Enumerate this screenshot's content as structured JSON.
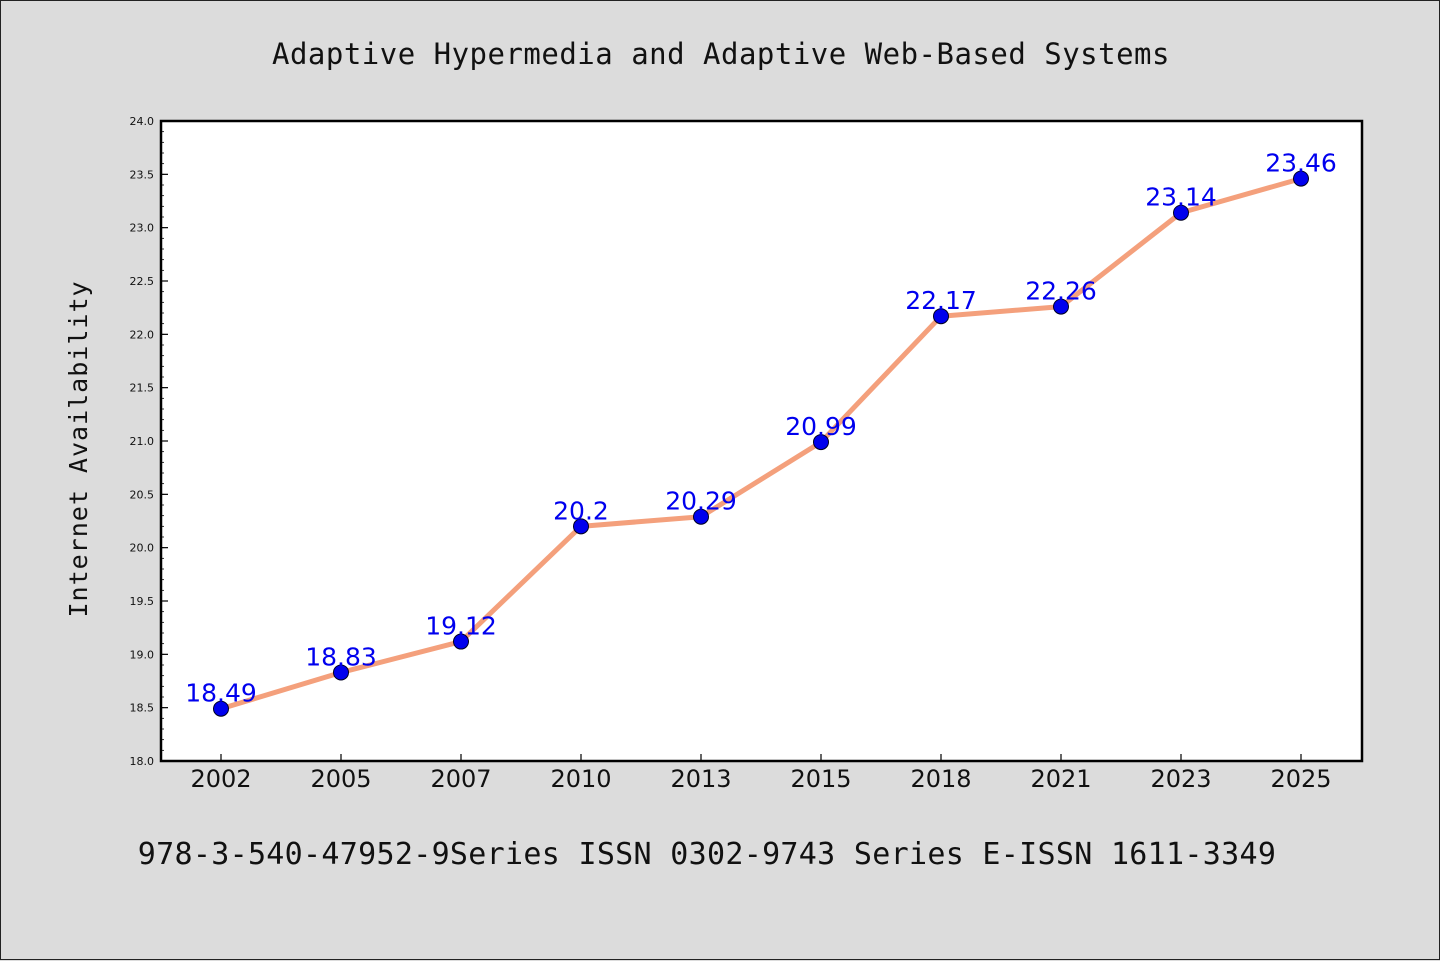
{
  "chart_data": {
    "type": "line",
    "title": "Adaptive Hypermedia and Adaptive Web-Based Systems",
    "xlabel": "",
    "ylabel": "Internet Availability",
    "footer": "978-3-540-47952-9Series ISSN 0302-9743 Series E-ISSN 1611-3349",
    "categories": [
      "2002",
      "2005",
      "2007",
      "2010",
      "2013",
      "2015",
      "2018",
      "2021",
      "2023",
      "2025"
    ],
    "series": [
      {
        "values": [
          18.49,
          18.83,
          19.12,
          20.2,
          20.29,
          20.99,
          22.17,
          22.26,
          23.14,
          23.46
        ],
        "data_labels": [
          "18.49",
          "18.83",
          "19.12",
          "20.2",
          "20.29",
          "20.99",
          "22.17",
          "22.26",
          "23.14",
          "23.46"
        ]
      }
    ],
    "ylim": [
      18.0,
      24.0
    ],
    "yticks": [
      "18.0",
      "18.5",
      "19.0",
      "19.5",
      "20.0",
      "20.5",
      "21.0",
      "21.5",
      "22.0",
      "22.5",
      "23.0",
      "23.5",
      "24.0"
    ],
    "grid": false,
    "legend": "none",
    "colors": {
      "line": "#f4a07c",
      "marker": "#0000ee",
      "label": "#0000ee",
      "background": "#dcdcdc",
      "plot_background": "#ffffff"
    }
  }
}
